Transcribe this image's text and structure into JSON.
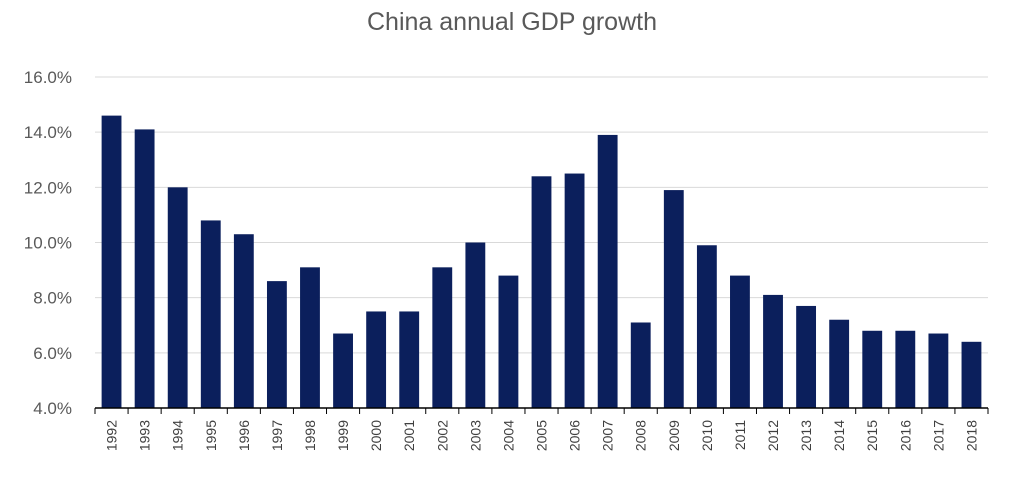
{
  "chart_data": {
    "type": "bar",
    "title": "China annual GDP growth",
    "xlabel": "",
    "ylabel": "",
    "categories": [
      "1992",
      "1993",
      "1994",
      "1995",
      "1996",
      "1997",
      "1998",
      "1999",
      "2000",
      "2001",
      "2002",
      "2003",
      "2004",
      "2005",
      "2006",
      "2007",
      "2008",
      "2009",
      "2010",
      "2011",
      "2012",
      "2013",
      "2014",
      "2015",
      "2016",
      "2017",
      "2018"
    ],
    "values": [
      14.6,
      14.1,
      12.0,
      10.8,
      10.3,
      8.6,
      9.1,
      6.7,
      7.5,
      7.5,
      9.1,
      10.0,
      8.8,
      12.4,
      12.5,
      13.9,
      7.1,
      11.9,
      9.9,
      8.8,
      8.1,
      7.7,
      7.2,
      6.8,
      6.8,
      6.7,
      6.4
    ],
    "ylim": [
      4.0,
      16.0
    ],
    "yticks": [
      "4.0%",
      "6.0%",
      "8.0%",
      "10.0%",
      "12.0%",
      "14.0%",
      "16.0%"
    ],
    "grid": true,
    "legend": "none",
    "bar_color": "#0b1f5c"
  }
}
